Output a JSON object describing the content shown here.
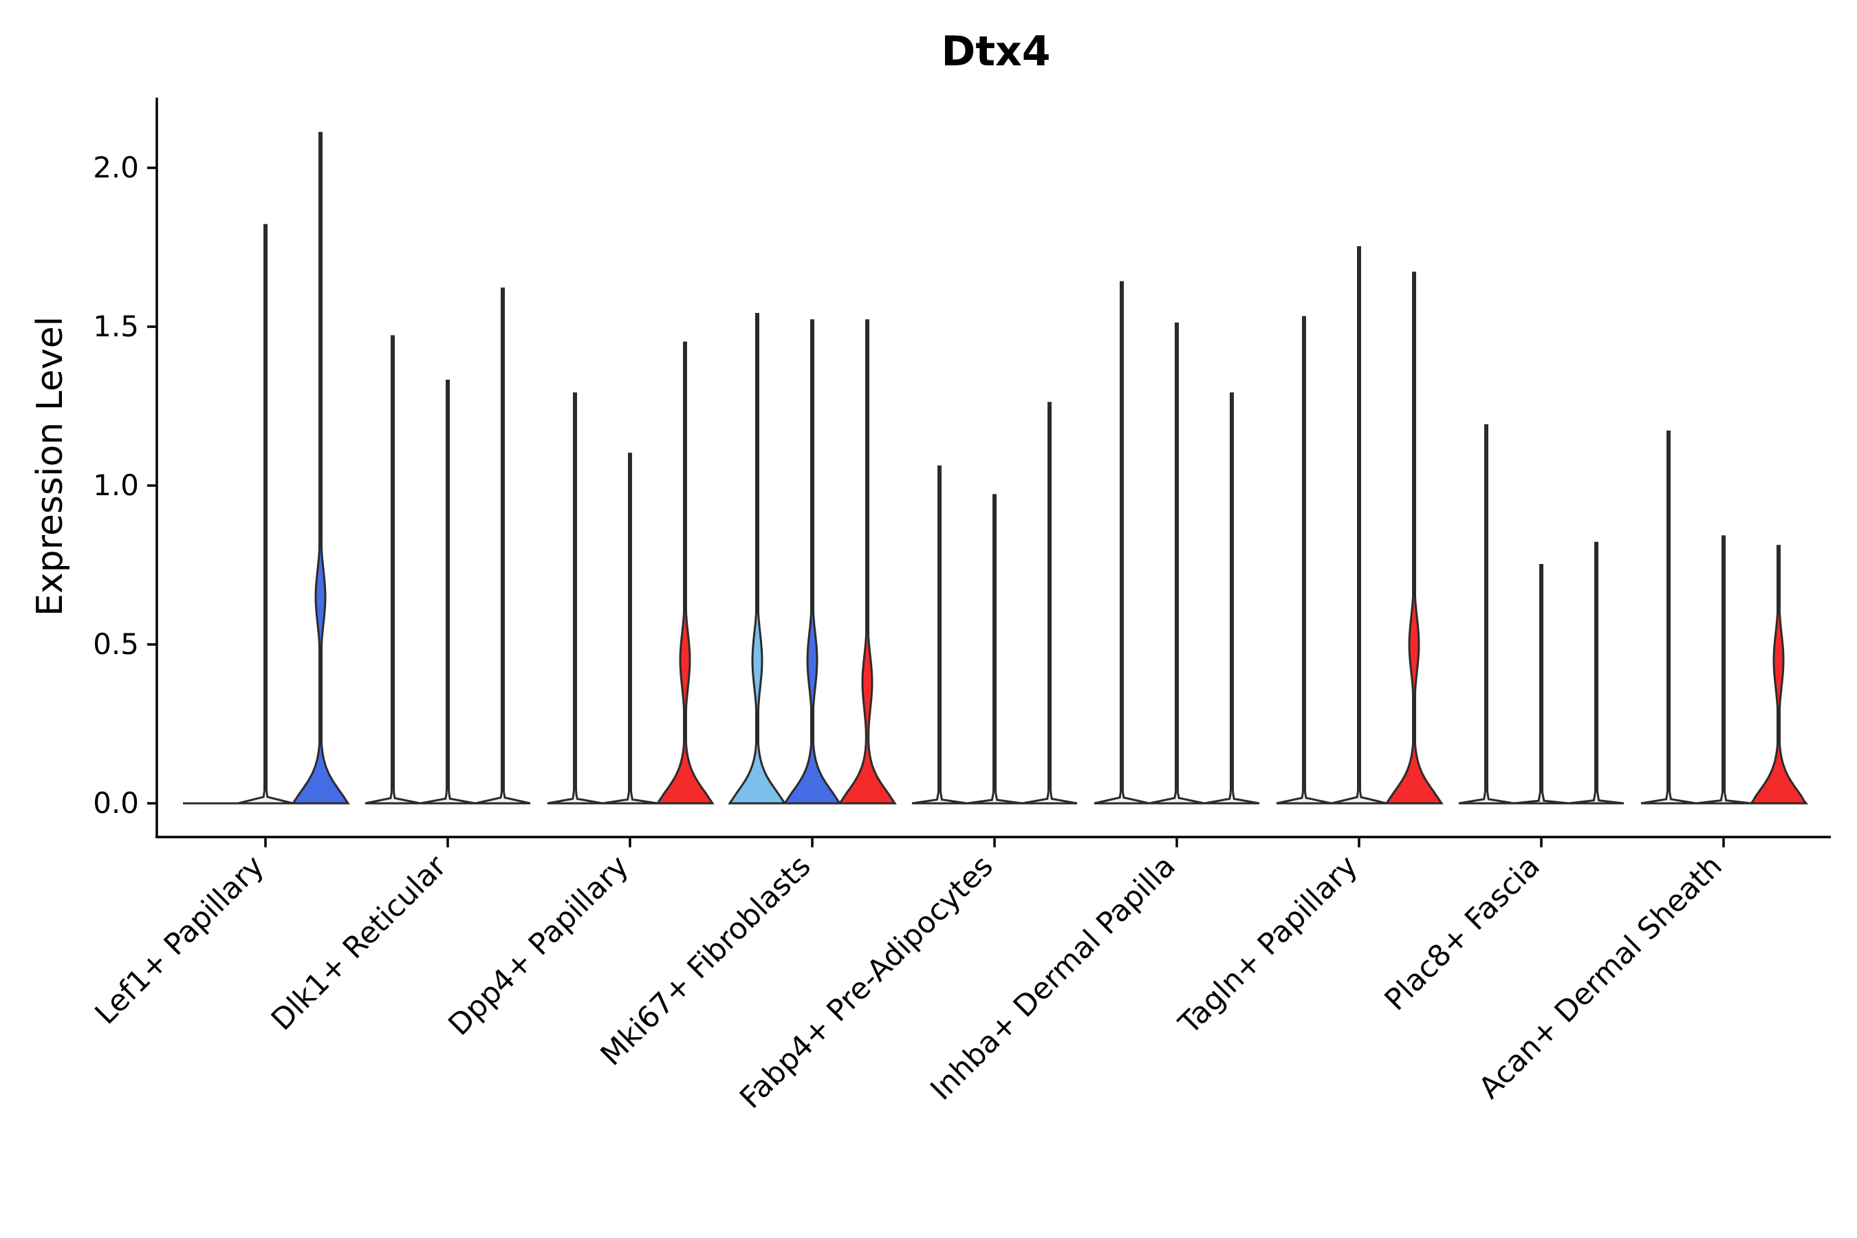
{
  "chart_data": {
    "type": "violin",
    "title": "Dtx4",
    "xlabel": "",
    "ylabel": "Expression Level",
    "ylim": [
      -0.1,
      2.2
    ],
    "yticks": [
      0.0,
      0.5,
      1.0,
      1.5,
      2.0
    ],
    "ytick_labels": [
      "0.0",
      "0.5",
      "1.0",
      "1.5",
      "2.0"
    ],
    "grid": false,
    "legend": "none",
    "colors": {
      "none": "#f2f2f2",
      "blue": "#456de6",
      "light_blue": "#7cbfea",
      "red": "#f52a2a",
      "outline": "#2b2b2b"
    },
    "categories": [
      "Lef1+ Papillary",
      "Dlk1+ Reticular",
      "Dpp4+ Papillary",
      "Mki67+ Fibroblasts",
      "Fabp4+ Pre-Adipocytes",
      "Inhba+ Dermal Papilla",
      "Tagln+ Papillary",
      "Plac8+ Fascia",
      "Acan+ Dermal Sheath"
    ],
    "groups": [
      {
        "category": "Lef1+ Papillary",
        "violins": [
          {
            "max": 0.0,
            "color": "none",
            "shape": "flat"
          },
          {
            "max": 1.82,
            "color": "none",
            "shape": "flat"
          },
          {
            "max": 2.11,
            "color": "blue",
            "shape": "bimodal",
            "upper_mode": 0.65
          }
        ]
      },
      {
        "category": "Dlk1+ Reticular",
        "violins": [
          {
            "max": 1.47,
            "color": "none",
            "shape": "flat"
          },
          {
            "max": 1.33,
            "color": "none",
            "shape": "flat"
          },
          {
            "max": 1.62,
            "color": "none",
            "shape": "flat"
          }
        ]
      },
      {
        "category": "Dpp4+ Papillary",
        "violins": [
          {
            "max": 1.29,
            "color": "none",
            "shape": "flat"
          },
          {
            "max": 1.1,
            "color": "none",
            "shape": "flat"
          },
          {
            "max": 1.45,
            "color": "red",
            "shape": "bimodal",
            "upper_mode": 0.45
          }
        ]
      },
      {
        "category": "Mki67+ Fibroblasts",
        "violins": [
          {
            "max": 1.54,
            "color": "light_blue",
            "shape": "bimodal",
            "upper_mode": 0.45
          },
          {
            "max": 1.52,
            "color": "blue",
            "shape": "bimodal",
            "upper_mode": 0.45
          },
          {
            "max": 1.52,
            "color": "red",
            "shape": "bimodal",
            "upper_mode": 0.38
          }
        ]
      },
      {
        "category": "Fabp4+ Pre-Adipocytes",
        "violins": [
          {
            "max": 1.06,
            "color": "none",
            "shape": "flat"
          },
          {
            "max": 0.97,
            "color": "none",
            "shape": "flat"
          },
          {
            "max": 1.26,
            "color": "none",
            "shape": "flat"
          }
        ]
      },
      {
        "category": "Inhba+ Dermal Papilla",
        "violins": [
          {
            "max": 1.64,
            "color": "none",
            "shape": "flat"
          },
          {
            "max": 1.51,
            "color": "none",
            "shape": "flat"
          },
          {
            "max": 1.29,
            "color": "none",
            "shape": "flat"
          }
        ]
      },
      {
        "category": "Tagln+ Papillary",
        "violins": [
          {
            "max": 1.53,
            "color": "none",
            "shape": "flat"
          },
          {
            "max": 1.75,
            "color": "none",
            "shape": "flat"
          },
          {
            "max": 1.67,
            "color": "red",
            "shape": "bimodal",
            "upper_mode": 0.5
          }
        ]
      },
      {
        "category": "Plac8+ Fascia",
        "violins": [
          {
            "max": 1.19,
            "color": "none",
            "shape": "flat"
          },
          {
            "max": 0.75,
            "color": "none",
            "shape": "flat"
          },
          {
            "max": 0.82,
            "color": "none",
            "shape": "flat"
          }
        ]
      },
      {
        "category": "Acan+ Dermal Sheath",
        "violins": [
          {
            "max": 1.17,
            "color": "none",
            "shape": "flat"
          },
          {
            "max": 0.84,
            "color": "none",
            "shape": "flat"
          },
          {
            "max": 0.81,
            "color": "red",
            "shape": "bimodal",
            "upper_mode": 0.45
          }
        ]
      }
    ]
  }
}
